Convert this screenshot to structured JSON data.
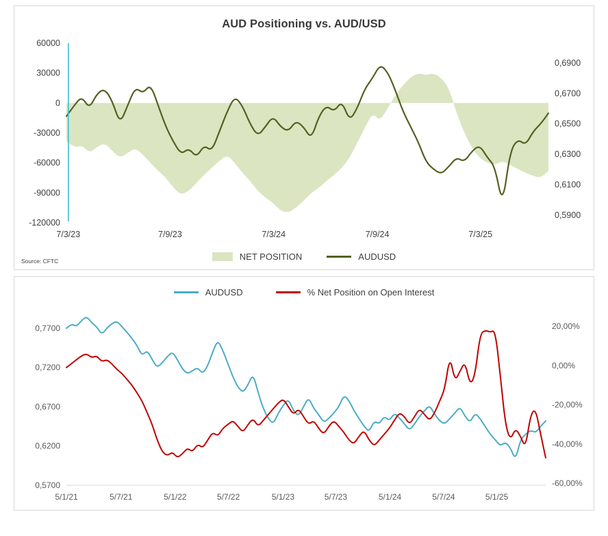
{
  "chart_data": [
    {
      "id": "aud-positioning-vs-audusd",
      "type": "area",
      "title": "AUD Positioning vs. AUD/USD",
      "source": "Source: CFTC",
      "axis_color": "#404040",
      "grid": false,
      "legend_position": "bottom",
      "left_axis": {
        "min": -120000,
        "max": 60000,
        "ticks": [
          {
            "v": 60000,
            "label": "60000"
          },
          {
            "v": 30000,
            "label": "30000"
          },
          {
            "v": 0,
            "label": "0"
          },
          {
            "v": -30000,
            "label": "-30000"
          },
          {
            "v": -60000,
            "label": "-60000"
          },
          {
            "v": -90000,
            "label": "-90000"
          },
          {
            "v": -120000,
            "label": "-120000"
          }
        ]
      },
      "right_axis": {
        "min": 0.585,
        "max": 0.703,
        "ticks": [
          {
            "v": 0.69,
            "label": "0,6900"
          },
          {
            "v": 0.67,
            "label": "0,6700"
          },
          {
            "v": 0.65,
            "label": "0,6500"
          },
          {
            "v": 0.63,
            "label": "0,6300"
          },
          {
            "v": 0.61,
            "label": "0,6100"
          },
          {
            "v": 0.59,
            "label": "0,5900"
          }
        ]
      },
      "x_ticks": [
        {
          "pos": 0.004,
          "label": "7/3/23"
        },
        {
          "pos": 0.215,
          "label": "7/9/23"
        },
        {
          "pos": 0.43,
          "label": "7/3/24"
        },
        {
          "pos": 0.645,
          "label": "7/9/24"
        },
        {
          "pos": 0.859,
          "label": "7/3/25"
        }
      ],
      "series": [
        {
          "name": "NET POSITION",
          "kind": "area",
          "axis": "left",
          "color": "#dbe5c1",
          "values": [
            -38000,
            -45000,
            -42000,
            -50000,
            -44000,
            -40000,
            -48000,
            -55000,
            -50000,
            -45000,
            -52000,
            -60000,
            -68000,
            -75000,
            -85000,
            -92000,
            -88000,
            -80000,
            -72000,
            -65000,
            -58000,
            -52000,
            -60000,
            -70000,
            -78000,
            -88000,
            -95000,
            -100000,
            -108000,
            -110000,
            -105000,
            -98000,
            -90000,
            -85000,
            -78000,
            -72000,
            -65000,
            -55000,
            -40000,
            -25000,
            -10000,
            -18000,
            -5000,
            8000,
            18000,
            26000,
            30000,
            28000,
            30000,
            25000,
            15000,
            -10000,
            -30000,
            -45000,
            -55000,
            -60000,
            -62000,
            -58000,
            -62000,
            -66000,
            -70000,
            -73000,
            -75000,
            -68000
          ]
        },
        {
          "name": "AUDUSD",
          "kind": "line",
          "axis": "right",
          "color": "#536020",
          "width": 2.2,
          "values": [
            0.655,
            0.662,
            0.668,
            0.66,
            0.67,
            0.673,
            0.665,
            0.65,
            0.662,
            0.674,
            0.67,
            0.676,
            0.662,
            0.648,
            0.638,
            0.63,
            0.634,
            0.628,
            0.636,
            0.632,
            0.645,
            0.658,
            0.668,
            0.662,
            0.65,
            0.642,
            0.648,
            0.655,
            0.648,
            0.645,
            0.652,
            0.648,
            0.64,
            0.655,
            0.662,
            0.658,
            0.665,
            0.652,
            0.66,
            0.673,
            0.68,
            0.689,
            0.684,
            0.672,
            0.658,
            0.648,
            0.638,
            0.625,
            0.62,
            0.617,
            0.622,
            0.628,
            0.625,
            0.632,
            0.636,
            0.628,
            0.622,
            0.596,
            0.632,
            0.64,
            0.636,
            0.645,
            0.65,
            0.657
          ]
        }
      ],
      "decor": {
        "vertical_line": {
          "pos": 0.004,
          "color": "#3fbdd1"
        }
      }
    },
    {
      "id": "audusd-vs-net-position-pct",
      "type": "line",
      "title": "",
      "axis_color": "#595959",
      "grid": false,
      "legend_position": "top",
      "left_axis": {
        "min": 0.57,
        "max": 0.79,
        "ticks": [
          {
            "v": 0.77,
            "label": "0,7700"
          },
          {
            "v": 0.72,
            "label": "0,7200"
          },
          {
            "v": 0.67,
            "label": "0,6700"
          },
          {
            "v": 0.62,
            "label": "0,6200"
          },
          {
            "v": 0.57,
            "label": "0,5700"
          }
        ]
      },
      "right_axis": {
        "min": -61,
        "max": 27,
        "ticks": [
          {
            "v": 20,
            "label": "20,00%"
          },
          {
            "v": 0,
            "label": "0,00%"
          },
          {
            "v": -20,
            "label": "-20,00%"
          },
          {
            "v": -40,
            "label": "-40,00%"
          },
          {
            "v": -60,
            "label": "-60,00%"
          }
        ]
      },
      "x_ticks": [
        {
          "pos": 0.0,
          "label": "5/1/21"
        },
        {
          "pos": 0.114,
          "label": "5/7/21"
        },
        {
          "pos": 0.227,
          "label": "5/1/22"
        },
        {
          "pos": 0.338,
          "label": "5/7/22"
        },
        {
          "pos": 0.452,
          "label": "5/1/23"
        },
        {
          "pos": 0.562,
          "label": "5/7/23"
        },
        {
          "pos": 0.675,
          "label": "5/1/24"
        },
        {
          "pos": 0.787,
          "label": "5/7/24"
        },
        {
          "pos": 0.898,
          "label": "5/1/25"
        }
      ],
      "series": [
        {
          "name": "AUDUSD",
          "kind": "line",
          "axis": "left",
          "color": "#4bacc6",
          "width": 2,
          "values": [
            0.77,
            0.776,
            0.772,
            0.78,
            0.785,
            0.777,
            0.772,
            0.762,
            0.77,
            0.776,
            0.779,
            0.772,
            0.765,
            0.757,
            0.748,
            0.735,
            0.742,
            0.73,
            0.72,
            0.726,
            0.734,
            0.74,
            0.73,
            0.718,
            0.712,
            0.716,
            0.72,
            0.712,
            0.722,
            0.74,
            0.755,
            0.742,
            0.725,
            0.708,
            0.695,
            0.688,
            0.698,
            0.712,
            0.688,
            0.668,
            0.655,
            0.648,
            0.662,
            0.672,
            0.68,
            0.665,
            0.658,
            0.67,
            0.682,
            0.668,
            0.66,
            0.65,
            0.655,
            0.662,
            0.67,
            0.685,
            0.678,
            0.665,
            0.655,
            0.645,
            0.638,
            0.652,
            0.648,
            0.658,
            0.652,
            0.662,
            0.656,
            0.648,
            0.64,
            0.648,
            0.658,
            0.665,
            0.672,
            0.66,
            0.652,
            0.648,
            0.655,
            0.662,
            0.67,
            0.658,
            0.65,
            0.662,
            0.655,
            0.645,
            0.635,
            0.628,
            0.62,
            0.625,
            0.618,
            0.602,
            0.628,
            0.635,
            0.64,
            0.637,
            0.645,
            0.652
          ]
        },
        {
          "name": "% Net Position on Open Interest",
          "kind": "line",
          "axis": "right",
          "color": "#c00000",
          "width": 2,
          "values": [
            -1,
            1,
            3,
            5,
            6,
            4,
            5,
            2,
            3,
            1,
            -2,
            -4,
            -7,
            -10,
            -14,
            -18,
            -24,
            -30,
            -38,
            -44,
            -46,
            -44,
            -47,
            -45,
            -42,
            -44,
            -40,
            -42,
            -38,
            -34,
            -36,
            -32,
            -30,
            -28,
            -31,
            -34,
            -30,
            -27,
            -31,
            -28,
            -25,
            -22,
            -19,
            -17,
            -21,
            -25,
            -22,
            -26,
            -30,
            -28,
            -32,
            -35,
            -31,
            -28,
            -31,
            -34,
            -38,
            -40,
            -36,
            -33,
            -38,
            -41,
            -38,
            -35,
            -32,
            -28,
            -24,
            -26,
            -30,
            -26,
            -22,
            -25,
            -28,
            -24,
            -18,
            -12,
            5,
            -8,
            -3,
            2,
            -10,
            -5,
            16,
            18,
            17,
            18,
            -5,
            -30,
            -38,
            -32,
            -36,
            -42,
            -25,
            -22,
            -35,
            -47
          ]
        }
      ]
    }
  ]
}
